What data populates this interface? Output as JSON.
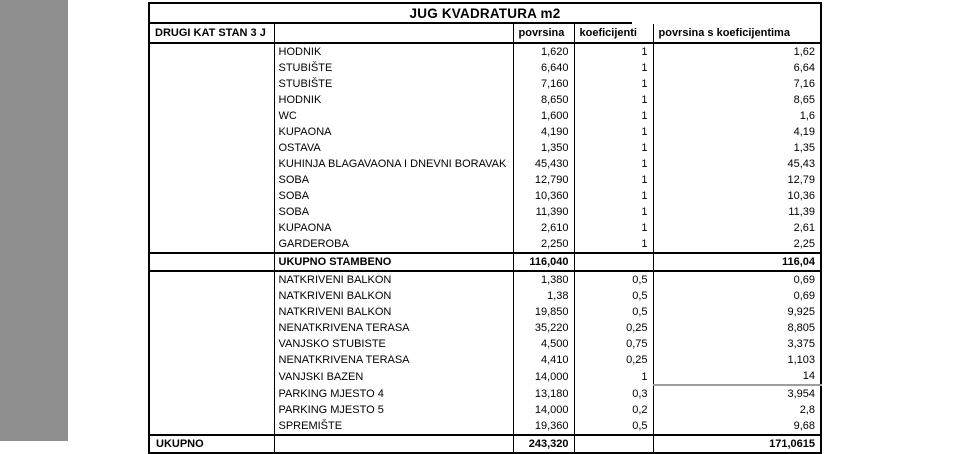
{
  "page": {
    "background": "#ffffff",
    "margin_bar_color": "#8f8f8f",
    "table_border_color": "#000000",
    "sum_underline_color": "#9e9e9e"
  },
  "table": {
    "title": "JUG KVADRATURA m2",
    "headers": [
      "DRUGI KAT STAN 3 J",
      "",
      "povrsina",
      "koeficijenti",
      "povrsina s koeficijentima"
    ],
    "rows": [
      {
        "name": "HODNIK",
        "area": "1,620",
        "coef": "1",
        "total": "1,62"
      },
      {
        "name": "STUBIŠTE",
        "area": "6,640",
        "coef": "1",
        "total": "6,64"
      },
      {
        "name": "STUBIŠTE",
        "area": "7,160",
        "coef": "1",
        "total": "7,16"
      },
      {
        "name": "HODNIK",
        "area": "8,650",
        "coef": "1",
        "total": "8,65"
      },
      {
        "name": "WC",
        "area": "1,600",
        "coef": "1",
        "total": "1,6"
      },
      {
        "name": "KUPAONA",
        "area": "4,190",
        "coef": "1",
        "total": "4,19"
      },
      {
        "name": "OSTAVA",
        "area": "1,350",
        "coef": "1",
        "total": "1,35"
      },
      {
        "name": "KUHINJA BLAGAVAONA I DNEVNI BORAVAK",
        "area": "45,430",
        "coef": "1",
        "total": "45,43"
      },
      {
        "name": "SOBA",
        "area": "12,790",
        "coef": "1",
        "total": "12,79"
      },
      {
        "name": "SOBA",
        "area": "10,360",
        "coef": "1",
        "total": "10,36"
      },
      {
        "name": "SOBA",
        "area": "11,390",
        "coef": "1",
        "total": "11,39"
      },
      {
        "name": "KUPAONA",
        "area": "2,610",
        "coef": "1",
        "total": "2,61"
      },
      {
        "name": "GARDEROBA",
        "area": "2,250",
        "coef": "1",
        "total": "2,25"
      },
      {
        "name": "UKUPNO STAMBENO",
        "area": "116,040",
        "coef": "",
        "total": "116,04",
        "style": "subtotal"
      },
      {
        "name": "NATKRIVENI BALKON",
        "area": "1,380",
        "coef": "0,5",
        "total": "0,69"
      },
      {
        "name": "NATKRIVENI BALKON",
        "area": "1,38",
        "coef": "0,5",
        "total": "0,69"
      },
      {
        "name": "NATKRIVENI BALKON",
        "area": "19,850",
        "coef": "0,5",
        "total": "9,925"
      },
      {
        "name": "NENATKRIVENA TERASA",
        "area": "35,220",
        "coef": "0,25",
        "total": "8,805"
      },
      {
        "name": "VANJSKO STUBISTE",
        "area": "4,500",
        "coef": "0,75",
        "total": "3,375"
      },
      {
        "name": "NENATKRIVENA TERASA",
        "area": "4,410",
        "coef": "0,25",
        "total": "1,103"
      },
      {
        "name": "VANJSKI BAZEN",
        "area": "14,000",
        "coef": "1",
        "total": "14",
        "style": "sum-underline"
      },
      {
        "name": "PARKING MJESTO 4",
        "area": "13,180",
        "coef": "0,3",
        "total": "3,954"
      },
      {
        "name": "PARKING MJESTO 5",
        "area": "14,000",
        "coef": "0,2",
        "total": "2,8"
      },
      {
        "name": "SPREMIŠTE",
        "area": "19,360",
        "coef": "0,5",
        "total": "9,68"
      }
    ],
    "footer": {
      "name": "UKUPNO",
      "area": "243,320",
      "coef": "",
      "total": "171,0615"
    }
  }
}
